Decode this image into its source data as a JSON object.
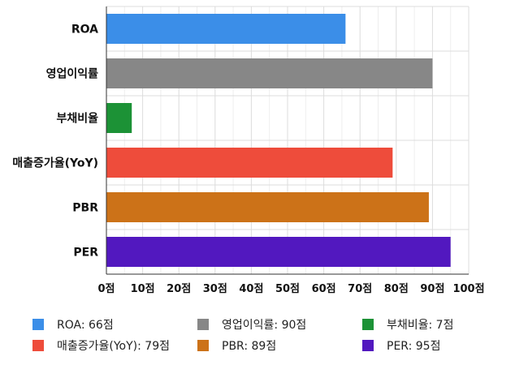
{
  "chart_data": {
    "type": "bar",
    "orientation": "horizontal",
    "categories": [
      "ROA",
      "영업이익률",
      "부채비율",
      "매출증가율(YoY)",
      "PBR",
      "PER"
    ],
    "values": [
      66,
      90,
      7,
      79,
      89,
      95
    ],
    "colors": [
      "#3b8ee8",
      "#878787",
      "#1c9236",
      "#ee4c3b",
      "#cc7218",
      "#5218bf"
    ],
    "xlim": [
      0,
      100
    ],
    "x_ticks": [
      0,
      10,
      20,
      30,
      40,
      50,
      60,
      70,
      80,
      90,
      100
    ],
    "tick_suffix": "점",
    "grid": true,
    "legend": {
      "position": "bottom",
      "items": [
        "ROA: 66점",
        "영업이익률: 90점",
        "부채비율: 7점",
        "매출증가율(YoY): 79점",
        "PBR: 89점",
        "PER: 95점"
      ]
    }
  }
}
